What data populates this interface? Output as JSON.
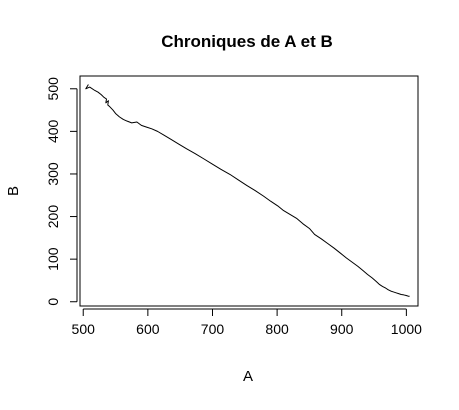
{
  "chart_data": {
    "type": "line",
    "title": "Chroniques de A et B",
    "xlabel": "A",
    "ylabel": "B",
    "xlim": [
      495,
      1018
    ],
    "ylim": [
      -10,
      530
    ],
    "grid": false,
    "legend": "none",
    "line_color": "#000000",
    "x_ticks": [
      500,
      600,
      700,
      800,
      900,
      1000
    ],
    "y_ticks": [
      0,
      100,
      200,
      300,
      400,
      500
    ],
    "x_tick_labels": [
      "500",
      "600",
      "700",
      "800",
      "900",
      "1000"
    ],
    "y_tick_labels": [
      "0",
      "100",
      "200",
      "300",
      "400",
      "500"
    ],
    "series": [
      {
        "x": [
          508,
          504,
          510,
          518,
          523,
          528,
          532,
          536,
          535,
          539,
          538,
          541,
          546,
          550,
          556,
          562,
          568,
          575,
          583,
          590,
          598,
          606,
          615,
          625,
          636,
          648,
          660,
          673,
          686,
          700,
          713,
          727,
          740,
          753,
          766,
          779,
          790,
          801,
          810,
          820,
          830,
          840,
          850,
          858,
          868,
          878,
          888,
          898,
          907,
          916,
          925,
          933,
          940,
          947,
          953,
          958,
          963,
          968,
          972,
          976,
          980,
          984,
          988,
          992,
          996,
          999,
          1001,
          1003,
          1005
        ],
        "y": [
          510,
          500,
          504,
          496,
          492,
          486,
          480,
          476,
          467,
          472,
          462,
          458,
          450,
          442,
          434,
          428,
          424,
          420,
          422,
          414,
          410,
          406,
          400,
          391,
          381,
          370,
          359,
          348,
          336,
          323,
          311,
          299,
          286,
          273,
          261,
          248,
          236,
          225,
          214,
          205,
          196,
          183,
          172,
          158,
          148,
          137,
          126,
          114,
          103,
          93,
          83,
          73,
          64,
          56,
          48,
          41,
          36,
          32,
          28,
          25,
          23,
          21,
          19,
          17,
          16,
          15,
          14,
          13,
          13
        ]
      }
    ]
  }
}
